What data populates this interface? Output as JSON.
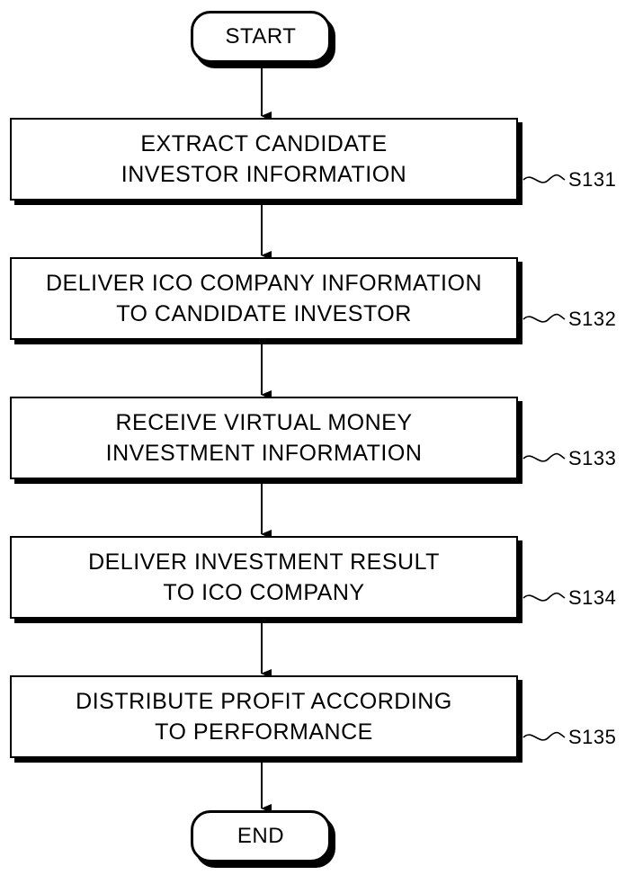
{
  "flowchart": {
    "start": "START",
    "end": "END",
    "steps": [
      {
        "line1": "EXTRACT CANDIDATE",
        "line2": "INVESTOR INFORMATION",
        "label": "S131"
      },
      {
        "line1": "DELIVER ICO COMPANY INFORMATION",
        "line2": "TO CANDIDATE INVESTOR",
        "label": "S132"
      },
      {
        "line1": "RECEIVE VIRTUAL MONEY",
        "line2": "INVESTMENT INFORMATION",
        "label": "S133"
      },
      {
        "line1": "DELIVER INVESTMENT RESULT",
        "line2": "TO ICO COMPANY",
        "label": "S134"
      },
      {
        "line1": "DISTRIBUTE PROFIT ACCORDING",
        "line2": "TO PERFORMANCE",
        "label": "S135"
      }
    ]
  }
}
